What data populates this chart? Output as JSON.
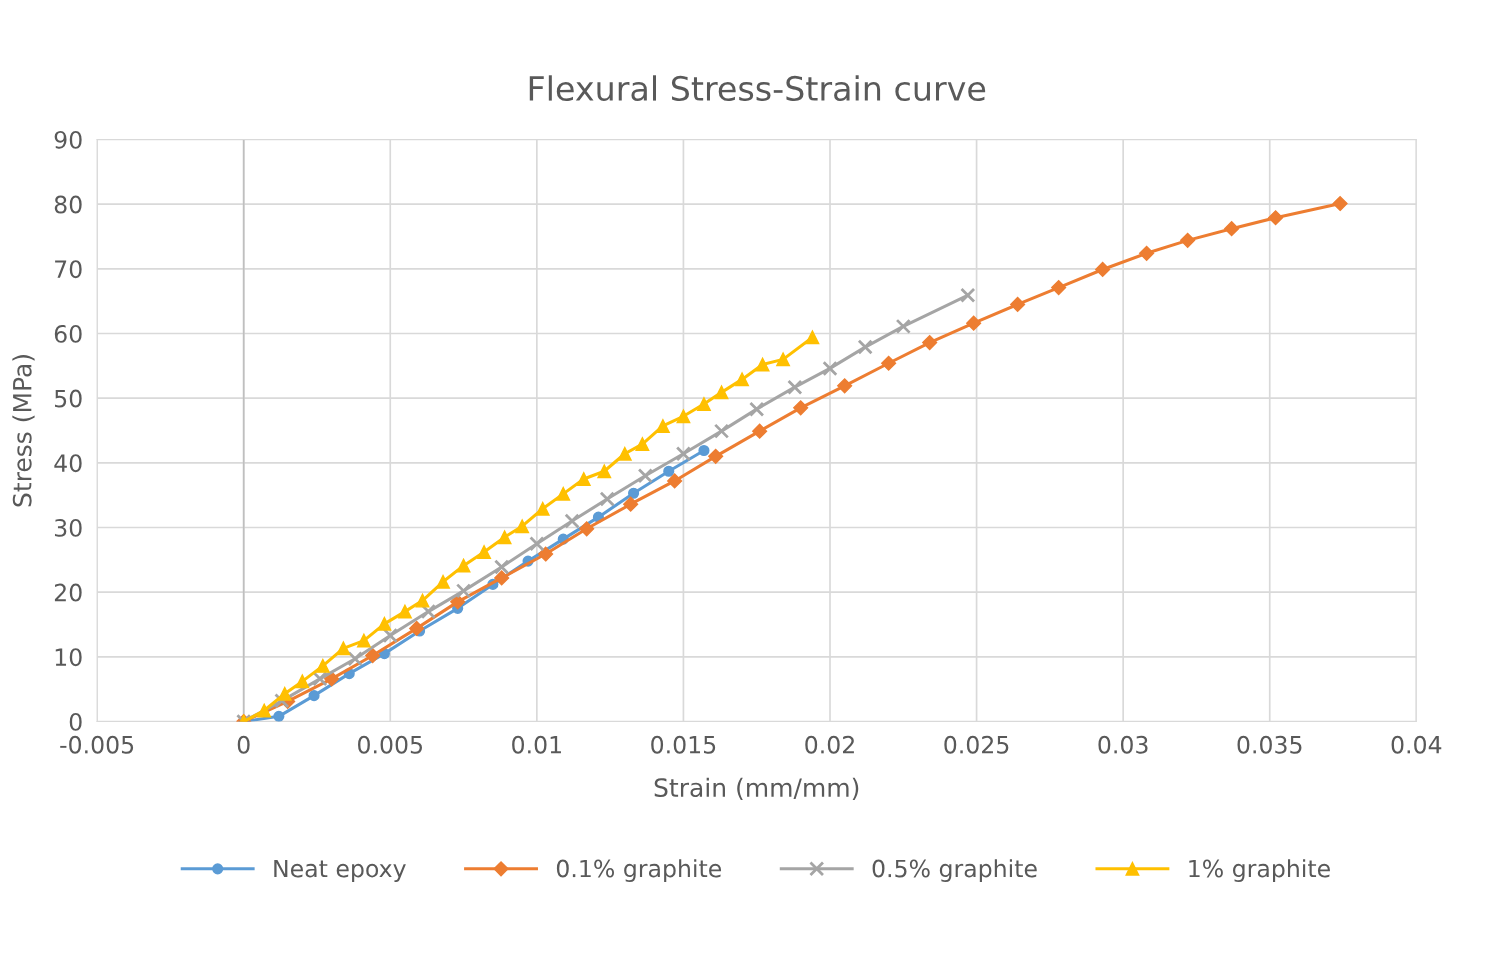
{
  "chart_data": {
    "type": "line",
    "title": "Flexural Stress-Strain curve",
    "xlabel": "Strain (mm/mm)",
    "ylabel": "Stress (MPa)",
    "xlim": [
      -0.005,
      0.04
    ],
    "xticks": [
      -0.005,
      0,
      0.005,
      0.01,
      0.015,
      0.02,
      0.025,
      0.03,
      0.035,
      0.04
    ],
    "ylim": [
      0,
      90
    ],
    "yticks": [
      0,
      10,
      20,
      30,
      40,
      50,
      60,
      70,
      80,
      90
    ],
    "grid": true,
    "legend": "bottom",
    "line_style": "solid",
    "series": [
      {
        "name": "Neat epoxy",
        "color": "#5b9bd5",
        "marker": "circle",
        "x": [
          0,
          0.0012,
          0.0024,
          0.0036,
          0.0048,
          0.006,
          0.0073,
          0.0085,
          0.0097,
          0.0109,
          0.0121,
          0.0133,
          0.0145,
          0.0157
        ],
        "values": [
          0,
          0.8,
          4,
          7.4,
          10.5,
          14,
          17.5,
          21.2,
          24.8,
          28.2,
          31.6,
          35.3,
          38.7,
          41.9
        ]
      },
      {
        "name": "0.1% graphite",
        "color": "#ed7d31",
        "marker": "diamond",
        "x": [
          0,
          0.0015,
          0.003,
          0.0044,
          0.0059,
          0.0073,
          0.0088,
          0.0103,
          0.0117,
          0.0132,
          0.0147,
          0.0161,
          0.0176,
          0.019,
          0.0205,
          0.022,
          0.0234,
          0.0249,
          0.0264,
          0.0278,
          0.0293,
          0.0308,
          0.0322,
          0.0337,
          0.0352,
          0.0374
        ],
        "values": [
          0,
          3.1,
          6.6,
          10.2,
          14.4,
          18.5,
          22.2,
          25.9,
          29.8,
          33.6,
          37.2,
          41.0,
          44.9,
          48.5,
          51.9,
          55.4,
          58.6,
          61.6,
          64.5,
          67.1,
          69.9,
          72.4,
          74.4,
          76.2,
          77.9,
          80.1
        ]
      },
      {
        "name": "0.5% graphite",
        "color": "#a5a5a5",
        "marker": "cross",
        "x": [
          0,
          0.0013,
          0.0026,
          0.0038,
          0.005,
          0.0063,
          0.0075,
          0.0088,
          0.01,
          0.0112,
          0.0124,
          0.0137,
          0.015,
          0.0163,
          0.0175,
          0.0188,
          0.02,
          0.0212,
          0.0225,
          0.0247
        ],
        "values": [
          0,
          3.2,
          6.6,
          9.7,
          13.3,
          17.0,
          20.2,
          23.9,
          27.5,
          31.0,
          34.4,
          38.0,
          41.4,
          44.9,
          48.3,
          51.7,
          54.6,
          57.9,
          61.1,
          65.9
        ]
      },
      {
        "name": "1% graphite",
        "color": "#ffc000",
        "marker": "triangle",
        "x": [
          0,
          0.0007,
          0.0014,
          0.002,
          0.0027,
          0.0034,
          0.0041,
          0.0048,
          0.0055,
          0.0061,
          0.0068,
          0.0075,
          0.0082,
          0.0089,
          0.0095,
          0.0102,
          0.0109,
          0.0116,
          0.0123,
          0.013,
          0.0136,
          0.0143,
          0.015,
          0.0157,
          0.0163,
          0.017,
          0.0177,
          0.0184,
          0.0194
        ],
        "values": [
          0,
          1.7,
          4.3,
          6.2,
          8.6,
          11.3,
          12.5,
          15.1,
          17.0,
          18.7,
          21.6,
          24.1,
          26.2,
          28.5,
          30.2,
          32.9,
          35.2,
          37.5,
          38.7,
          41.4,
          42.9,
          45.7,
          47.2,
          49.1,
          50.9,
          52.9,
          55.2,
          56.0,
          59.4
        ]
      }
    ]
  }
}
